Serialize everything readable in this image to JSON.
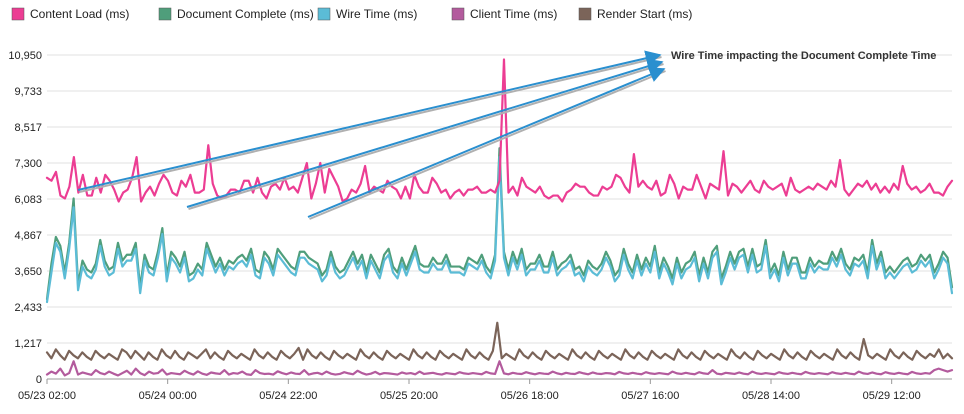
{
  "chart_data": {
    "type": "line",
    "title": "",
    "xlabel": "",
    "ylabel": "",
    "ylim": [
      0,
      10950
    ],
    "yticks": [
      "0",
      "1,217",
      "2,433",
      "3,650",
      "4,867",
      "6,083",
      "7,300",
      "8,517",
      "9,733",
      "10,950"
    ],
    "xticks": [
      "05/23 02:00",
      "05/24 00:00",
      "05/24 22:00",
      "05/25 20:00",
      "05/26 18:00",
      "05/27 16:00",
      "05/28 14:00",
      "05/29 12:00"
    ],
    "x_range": [
      "05/23 02:00",
      "05/29 23:00"
    ],
    "grid": "horizontal",
    "legend_position": "top",
    "series": [
      {
        "name": "Content Load (ms)",
        "color": "#ec3d93",
        "values": [
          6800,
          6700,
          7000,
          6200,
          6100,
          6500,
          7500,
          6300,
          6900,
          6200,
          6200,
          6800,
          6300,
          6900,
          6700,
          6400,
          6000,
          6300,
          6400,
          6800,
          7500,
          6000,
          6300,
          6500,
          6200,
          6600,
          6900,
          6700,
          6300,
          6200,
          6700,
          6500,
          6900,
          6300,
          6300,
          6400,
          7900,
          6600,
          6200,
          6100,
          6200,
          6400,
          6400,
          6300,
          6700,
          6700,
          6300,
          6800,
          6300,
          6100,
          6500,
          6600,
          6400,
          6800,
          6400,
          6500,
          6300,
          6800,
          7300,
          6100,
          6600,
          7300,
          6300,
          7100,
          6800,
          6500,
          6000,
          6100,
          6400,
          6300,
          6600,
          7200,
          6300,
          6500,
          6400,
          6300,
          6700,
          6500,
          6400,
          6100,
          6500,
          6100,
          6900,
          6500,
          6300,
          6300,
          6800,
          6600,
          6300,
          6400,
          6100,
          6300,
          6400,
          6200,
          6400,
          6400,
          6500,
          6300,
          6300,
          6400,
          6300,
          6700,
          10800,
          6300,
          6500,
          6200,
          6800,
          6500,
          6400,
          6300,
          6500,
          6200,
          6100,
          6200,
          6200,
          6000,
          6300,
          6400,
          6600,
          6500,
          6500,
          6300,
          6200,
          6200,
          6500,
          6400,
          6500,
          6900,
          6800,
          6500,
          6300,
          7600,
          6500,
          6700,
          6500,
          6400,
          6700,
          6200,
          6300,
          6900,
          6600,
          6100,
          6500,
          6400,
          6400,
          6900,
          6500,
          6100,
          6600,
          6500,
          6400,
          7700,
          6200,
          6600,
          6500,
          6300,
          6500,
          6700,
          6400,
          6300,
          6700,
          6500,
          6400,
          6500,
          6600,
          6200,
          6800,
          6400,
          6300,
          6400,
          6500,
          6400,
          6600,
          6500,
          6400,
          6700,
          6500,
          7400,
          6400,
          6200,
          6400,
          6600,
          6500,
          6700,
          6400,
          6600,
          6300,
          6500,
          6300,
          6600,
          6400,
          7200,
          6600,
          6400,
          6500,
          6300,
          6400,
          6600,
          6300,
          6300,
          6200,
          6500,
          6700
        ]
      },
      {
        "name": "Document Complete (ms)",
        "color": "#4f9e7b",
        "values": [
          2700,
          3900,
          4800,
          4500,
          3600,
          4600,
          6100,
          3200,
          4000,
          3700,
          3600,
          3900,
          4700,
          4000,
          3700,
          3800,
          4600,
          4000,
          4200,
          4200,
          4600,
          3100,
          4200,
          3800,
          3700,
          4300,
          5100,
          3500,
          4300,
          4100,
          3800,
          4300,
          3500,
          3600,
          3900,
          3700,
          4600,
          4200,
          3800,
          4100,
          3700,
          4000,
          3900,
          4100,
          4200,
          4000,
          4400,
          3700,
          3600,
          4300,
          4100,
          3700,
          4400,
          4200,
          4000,
          3800,
          3700,
          4300,
          4300,
          4100,
          4000,
          3900,
          3500,
          3700,
          4300,
          3800,
          3600,
          3700,
          4000,
          4300,
          3900,
          4200,
          3600,
          4200,
          3900,
          3600,
          4200,
          4400,
          3800,
          3600,
          4100,
          3700,
          4100,
          4500,
          3900,
          3800,
          3800,
          4100,
          3900,
          3900,
          4200,
          3800,
          3800,
          3800,
          3700,
          4100,
          4000,
          3900,
          4200,
          3800,
          3600,
          4200,
          7800,
          4300,
          3700,
          4300,
          3900,
          4400,
          3700,
          3900,
          3900,
          4200,
          3800,
          3800,
          4300,
          3700,
          3900,
          4000,
          4200,
          3700,
          3800,
          3500,
          4000,
          3800,
          3700,
          3900,
          4300,
          4000,
          3500,
          3700,
          4400,
          3900,
          3600,
          4200,
          3700,
          4100,
          3800,
          4500,
          3600,
          4100,
          3800,
          3400,
          4100,
          3600,
          3900,
          4000,
          4300,
          3500,
          4100,
          3600,
          4300,
          4500,
          3400,
          3800,
          4300,
          3900,
          4300,
          4400,
          3800,
          4400,
          3800,
          3900,
          4700,
          3600,
          3900,
          3500,
          4300,
          3700,
          4100,
          4100,
          3600,
          3600,
          4100,
          3800,
          4000,
          3900,
          3900,
          4300,
          4000,
          4400,
          3900,
          3700,
          4100,
          4000,
          4200,
          3600,
          4700,
          3900,
          4300,
          3600,
          3800,
          3600,
          3800,
          4000,
          4100,
          3800,
          3900,
          4200,
          4000,
          4200,
          3600,
          3900,
          4300,
          4100,
          3100
        ]
      },
      {
        "name": "Wire Time (ms)",
        "color": "#5bbcd6",
        "values": [
          2600,
          3600,
          4600,
          4300,
          3400,
          4400,
          5800,
          3000,
          3800,
          3500,
          3400,
          3700,
          4500,
          3800,
          3500,
          3600,
          4400,
          3800,
          4000,
          4000,
          4400,
          2900,
          4000,
          3600,
          3500,
          4100,
          4900,
          3300,
          4100,
          3900,
          3600,
          4100,
          3300,
          3400,
          3700,
          3500,
          4400,
          4000,
          3600,
          3900,
          3500,
          3800,
          3700,
          3900,
          4000,
          3800,
          4200,
          3500,
          3400,
          4100,
          3900,
          3500,
          4200,
          4000,
          3800,
          3600,
          3500,
          4100,
          4100,
          3900,
          3800,
          3700,
          3300,
          3500,
          4100,
          3600,
          3400,
          3500,
          3800,
          4100,
          3700,
          4000,
          3400,
          4000,
          3700,
          3400,
          4000,
          4200,
          3600,
          3400,
          3900,
          3500,
          3900,
          4300,
          3700,
          3600,
          3600,
          3900,
          3700,
          3700,
          4000,
          3600,
          3600,
          3600,
          3500,
          3900,
          3800,
          3700,
          4000,
          3600,
          3400,
          4000,
          7500,
          4100,
          3500,
          4100,
          3700,
          4200,
          3500,
          3700,
          3700,
          4000,
          3600,
          3600,
          4100,
          3500,
          3700,
          3800,
          4000,
          3500,
          3600,
          3300,
          3800,
          3600,
          3500,
          3700,
          4100,
          3800,
          3300,
          3500,
          4200,
          3700,
          3400,
          4000,
          3500,
          3900,
          3600,
          4300,
          3400,
          3900,
          3600,
          3200,
          3900,
          3400,
          3700,
          3800,
          4100,
          3300,
          3900,
          3400,
          4100,
          4300,
          3200,
          3600,
          4100,
          3700,
          4100,
          4200,
          3600,
          4200,
          3600,
          3700,
          4500,
          3400,
          3700,
          3300,
          4100,
          3500,
          3900,
          3900,
          3400,
          3400,
          3900,
          3600,
          3800,
          3700,
          3700,
          4100,
          3800,
          4200,
          3700,
          3500,
          3900,
          3800,
          4000,
          3400,
          4500,
          3700,
          4100,
          3400,
          3600,
          3400,
          3600,
          3800,
          3900,
          3600,
          3700,
          4000,
          3800,
          4000,
          3400,
          3700,
          4100,
          3900,
          2900
        ]
      },
      {
        "name": "Client Time (ms)",
        "color": "#b35b9d",
        "values": [
          150,
          250,
          180,
          350,
          120,
          200,
          600,
          150,
          220,
          180,
          140,
          300,
          200,
          160,
          250,
          180,
          120,
          200,
          280,
          150,
          350,
          200,
          130,
          250,
          180,
          200,
          320,
          150,
          200,
          180,
          160,
          280,
          200,
          150,
          260,
          180,
          140,
          220,
          190,
          170,
          300,
          150,
          200,
          180,
          250,
          160,
          140,
          300,
          200,
          170,
          180,
          150,
          260,
          200,
          160,
          220,
          180,
          170,
          300,
          150,
          190,
          210,
          160,
          250,
          180,
          150,
          170,
          230,
          190,
          160,
          280,
          200,
          150,
          180,
          240,
          160,
          200,
          190,
          170,
          150,
          220,
          180,
          200,
          160,
          250,
          170,
          190,
          210,
          170,
          150,
          200,
          180,
          160,
          230,
          190,
          170,
          200,
          180,
          160,
          240,
          190,
          170,
          600,
          190,
          160,
          210,
          180,
          170,
          230,
          190,
          160,
          200,
          180,
          170,
          250,
          190,
          160,
          210,
          180,
          170,
          230,
          190,
          160,
          220,
          180,
          170,
          200,
          190,
          160,
          240,
          190,
          170,
          210,
          180,
          160,
          230,
          190,
          170,
          200,
          180,
          160,
          250,
          190,
          170,
          210,
          180,
          160,
          230,
          190,
          170,
          300,
          180,
          160,
          210,
          190,
          170,
          220,
          180,
          160,
          250,
          190,
          170,
          200,
          180,
          160,
          230,
          190,
          170,
          210,
          180,
          160,
          240,
          190,
          170,
          200,
          180,
          160,
          230,
          190,
          170,
          210,
          180,
          160,
          250,
          190,
          170,
          220,
          180,
          160,
          230,
          190,
          170,
          210,
          180,
          160,
          240,
          190,
          170,
          200,
          180,
          300,
          350,
          300,
          250,
          300
        ]
      },
      {
        "name": "Render Start (ms)",
        "color": "#7b6459",
        "values": [
          900,
          700,
          1000,
          800,
          650,
          950,
          800,
          700,
          900,
          750,
          650,
          950,
          800,
          700,
          850,
          750,
          650,
          1000,
          900,
          700,
          950,
          800,
          650,
          900,
          750,
          650,
          1000,
          800,
          700,
          950,
          750,
          650,
          900,
          800,
          700,
          850,
          1000,
          700,
          900,
          750,
          650,
          950,
          800,
          700,
          850,
          750,
          650,
          1000,
          800,
          700,
          900,
          750,
          650,
          950,
          800,
          700,
          850,
          1050,
          650,
          1000,
          800,
          700,
          900,
          750,
          650,
          950,
          800,
          700,
          850,
          750,
          650,
          1000,
          800,
          700,
          900,
          750,
          650,
          950,
          800,
          700,
          850,
          750,
          650,
          1000,
          800,
          700,
          900,
          750,
          650,
          950,
          800,
          700,
          850,
          750,
          650,
          1000,
          800,
          700,
          900,
          750,
          650,
          950,
          1900,
          700,
          850,
          750,
          650,
          1000,
          800,
          700,
          900,
          750,
          650,
          950,
          800,
          700,
          850,
          750,
          650,
          1000,
          800,
          700,
          900,
          750,
          650,
          950,
          800,
          700,
          850,
          750,
          650,
          1000,
          800,
          700,
          900,
          750,
          650,
          950,
          800,
          700,
          850,
          750,
          650,
          1000,
          800,
          700,
          900,
          750,
          650,
          950,
          800,
          700,
          850,
          750,
          650,
          1000,
          800,
          700,
          900,
          750,
          650,
          950,
          800,
          700,
          850,
          750,
          650,
          1000,
          800,
          700,
          900,
          750,
          650,
          950,
          800,
          700,
          850,
          750,
          650,
          1000,
          800,
          700,
          900,
          750,
          650,
          1350,
          800,
          700,
          850,
          750,
          650,
          1000,
          800,
          700,
          900,
          750,
          650,
          950,
          800,
          700,
          850,
          750,
          1000,
          700,
          850,
          700
        ]
      }
    ],
    "annotations": [
      {
        "text": "Wire Time impacting the Document Complete Time"
      }
    ]
  }
}
